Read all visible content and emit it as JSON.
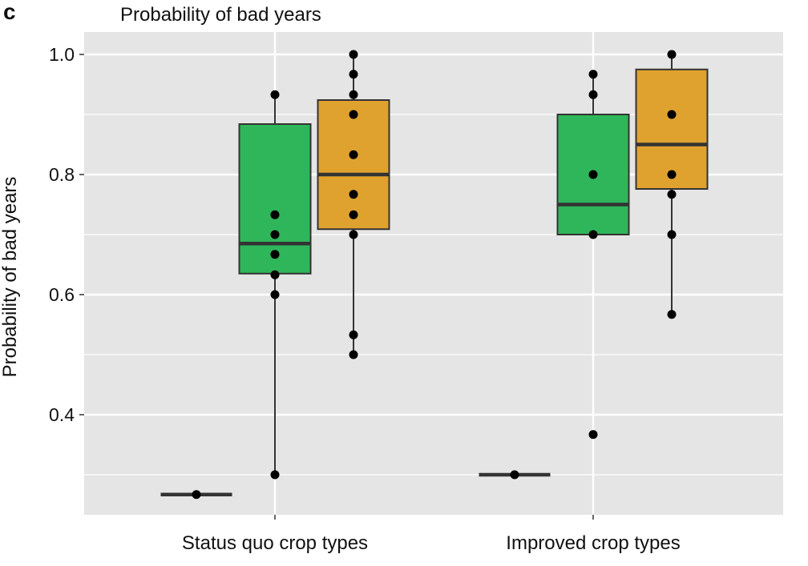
{
  "panel_label": "c",
  "chart_data": {
    "type": "box",
    "title": "Probability of bad years",
    "xlabel": "",
    "ylabel": "Probability of bad years",
    "ylim": [
      0.233,
      1.037
    ],
    "yticks": [
      0.4,
      0.6,
      0.8,
      1.0
    ],
    "ytick_labels": [
      "0.4",
      "0.6",
      "0.8",
      "1.0"
    ],
    "minor_gridlines": [
      0.3,
      0.5,
      0.7,
      0.9
    ],
    "grid": true,
    "categories": [
      "Status quo crop types",
      "Improved crop types"
    ],
    "colors": {
      "baseline": "#333333",
      "green": "#2fb65b",
      "orange": "#e0a22f",
      "panel": "#e5e5e5"
    },
    "groups": [
      {
        "category": "Status quo crop types",
        "boxes": [
          {
            "color": "baseline",
            "min": 0.267,
            "q1": 0.267,
            "median": 0.267,
            "q3": 0.267,
            "max": 0.267,
            "points": [
              0.267
            ]
          },
          {
            "color": "green",
            "min": 0.3,
            "q1": 0.635,
            "median": 0.685,
            "q3": 0.884,
            "max": 0.933,
            "points": [
              0.933,
              0.733,
              0.7,
              0.667,
              0.633,
              0.6,
              0.3
            ]
          },
          {
            "color": "orange",
            "min": 0.5,
            "q1": 0.709,
            "median": 0.8,
            "q3": 0.924,
            "max": 1.0,
            "points": [
              1.0,
              0.967,
              0.933,
              0.9,
              0.833,
              0.767,
              0.733,
              0.7,
              0.533,
              0.5
            ]
          }
        ]
      },
      {
        "category": "Improved crop types",
        "boxes": [
          {
            "color": "baseline",
            "min": 0.3,
            "q1": 0.3,
            "median": 0.3,
            "q3": 0.3,
            "max": 0.3,
            "points": [
              0.3
            ]
          },
          {
            "color": "green",
            "min": 0.7,
            "q1": 0.7,
            "median": 0.75,
            "q3": 0.9,
            "max": 0.967,
            "points": [
              0.967,
              0.933,
              0.8,
              0.7,
              0.367
            ]
          },
          {
            "color": "orange",
            "min": 0.567,
            "q1": 0.776,
            "median": 0.85,
            "q3": 0.975,
            "max": 1.0,
            "points": [
              1.0,
              0.9,
              0.8,
              0.767,
              0.7,
              0.567
            ]
          }
        ]
      }
    ]
  }
}
